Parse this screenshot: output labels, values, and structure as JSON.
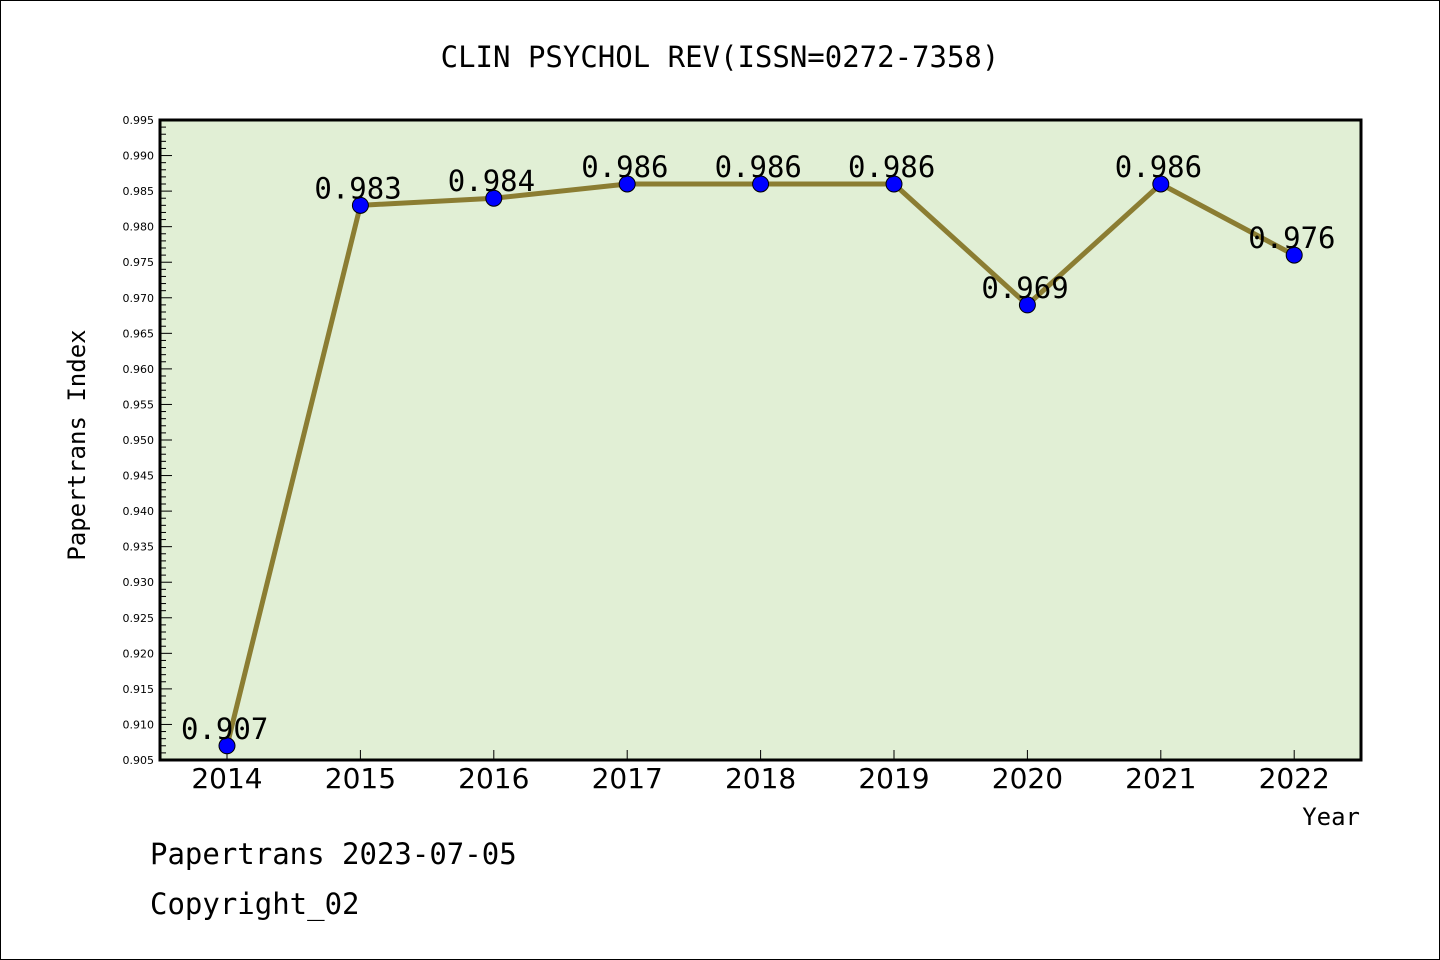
{
  "chart_data": {
    "type": "line",
    "title": "CLIN PSYCHOL REV(ISSN=0272-7358)",
    "xlabel": "Year",
    "ylabel": "Papertrans Index",
    "categories": [
      "2014",
      "2015",
      "2016",
      "2017",
      "2018",
      "2019",
      "2020",
      "2021",
      "2022"
    ],
    "series": [
      {
        "values": [
          0.907,
          0.983,
          0.984,
          0.986,
          0.986,
          0.986,
          0.969,
          0.986,
          0.976
        ],
        "data_labels": [
          "0.907",
          "0.983",
          "0.984",
          "0.986",
          "0.986",
          "0.986",
          "0.969",
          "0.986",
          "0.976"
        ]
      }
    ],
    "ylim": [
      0.905,
      0.995
    ],
    "ytick_labels": [
      "0.905",
      "0.910",
      "0.915",
      "0.920",
      "0.925",
      "0.930",
      "0.935",
      "0.940",
      "0.945",
      "0.950",
      "0.955",
      "0.960",
      "0.965",
      "0.970",
      "0.975",
      "0.980",
      "0.985",
      "0.990",
      "0.995"
    ],
    "grid": false,
    "legend": "none",
    "colors": {
      "plot_background": "#e1efd5",
      "line": "#8b7d32",
      "marker": "#0000ff",
      "axes": "#000000"
    }
  },
  "footer": {
    "line1": "Papertrans 2023-07-05",
    "line2": "Copyright_02"
  }
}
